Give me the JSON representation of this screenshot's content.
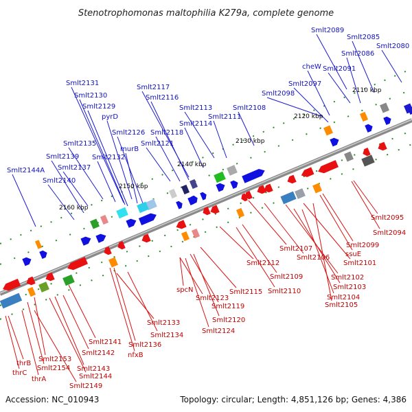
{
  "title": "Stenotrophomonas maltophilia K279a, complete genome",
  "footer": {
    "accession": "Accession: NC_010943",
    "summary": "Topology: circular; Length: 4,851,126 bp; Genes: 4,386"
  },
  "kbp_labels": [
    "2110 kbp",
    "2120 kbp",
    "2130 kbp",
    "2140 kbp",
    "2150 kbp",
    "2160 kbp"
  ],
  "top_labels": [
    "Smlt2089",
    "Smlt2085",
    "Smlt2080",
    "Smlt2086",
    "cheW",
    "Smlt2091",
    "Smlt2097",
    "Smlt2098",
    "Smlt2131",
    "Smlt2130",
    "Smlt2129",
    "Smlt2117",
    "Smlt2116",
    "pyrD",
    "Smlt2113",
    "Smlt2108",
    "Smlt2126",
    "Smlt2114",
    "Smlt2111",
    "Smlt2118",
    "murB",
    "Smlt2135",
    "Smlt2121",
    "Smlt2132",
    "Smlt2139",
    "Smlt2137",
    "Smlt2144A",
    "Smlt2140"
  ],
  "bottom_labels": [
    "Smlt2095",
    "Smlt2094",
    "Smlt2099",
    "ssuE",
    "Smlt2107",
    "Smlt2106",
    "Smlt2101",
    "Smlt2112",
    "Smlt2102",
    "Smlt2109",
    "Smlt2103",
    "Smlt2110",
    "Smlt2104",
    "Smlt2115",
    "Smlt2105",
    "spcN",
    "Smlt2123",
    "Smlt2119",
    "Smlt2120",
    "Smlt2133",
    "Smlt2124",
    "Smlt2134",
    "Smlt2141",
    "Smlt2136",
    "Smlt2142",
    "nfxB",
    "Smlt2153",
    "Smlt2143",
    "thrB",
    "Smlt2154",
    "Smlt2144",
    "thrC",
    "thrA",
    "Smlt2149"
  ],
  "colors": {
    "forward_cds": "#1010e0",
    "reverse_cds": "#e81010",
    "backbone": "#707070",
    "gc_skew": "#1f7a1f",
    "rrna": "#ff8c00"
  }
}
